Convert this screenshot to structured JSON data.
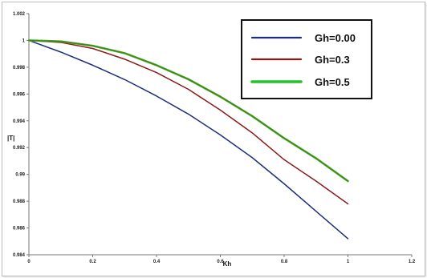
{
  "chart_data": {
    "type": "line",
    "xlabel": "Kh",
    "ylabel": "|T|",
    "xlim": [
      0,
      1.2
    ],
    "ylim": [
      0.984,
      1.002
    ],
    "xticks": [
      "0",
      "0.2",
      "0.4",
      "0.6",
      "0.8",
      "1",
      "1.2"
    ],
    "yticks": [
      "0.984",
      "0.986",
      "0.988",
      "0.99",
      "0.992",
      "0.994",
      "0.996",
      "0.998",
      "1",
      "1.002"
    ],
    "grid": false,
    "legend_position": "top-right",
    "series": [
      {
        "name": "Gh=0.00",
        "color": "#1f2f7a",
        "x": [
          0,
          0.1,
          0.2,
          0.3,
          0.4,
          0.5,
          0.6,
          0.7,
          0.8,
          0.9,
          1.0
        ],
        "values": [
          1.0,
          0.99913,
          0.99815,
          0.99708,
          0.99585,
          0.9945,
          0.99295,
          0.99125,
          0.9893,
          0.98725,
          0.9852
        ]
      },
      {
        "name": "Gh=0.3",
        "color": "#8b1a1a",
        "x": [
          0,
          0.1,
          0.2,
          0.3,
          0.4,
          0.5,
          0.6,
          0.7,
          0.8,
          0.9,
          1.0
        ],
        "values": [
          1.0,
          0.99985,
          0.9994,
          0.9986,
          0.9976,
          0.99635,
          0.9948,
          0.9931,
          0.9911,
          0.9895,
          0.9878
        ]
      },
      {
        "name": "Gh=0.5",
        "color": "#22c22a",
        "x": [
          0,
          0.1,
          0.2,
          0.3,
          0.4,
          0.5,
          0.6,
          0.7,
          0.8,
          0.9,
          1.0
        ],
        "values": [
          1.0,
          0.99993,
          0.9996,
          0.99905,
          0.99815,
          0.9971,
          0.9958,
          0.99435,
          0.9927,
          0.9912,
          0.9895
        ]
      }
    ],
    "overlay_color": "#6d6b16"
  }
}
